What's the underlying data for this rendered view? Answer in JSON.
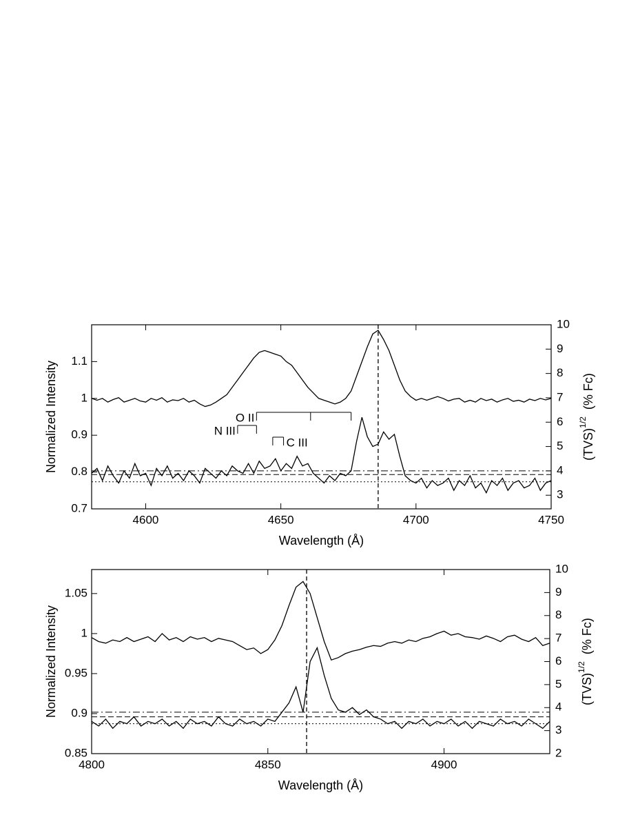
{
  "chart_data": [
    {
      "type": "line",
      "x_label": "Wavelength (Å)",
      "y_label": "Normalized Intensity",
      "y2_label": {
        "base": "(TVS)",
        "sup": "1/2",
        "unit": "(% Fc)"
      },
      "xlim": [
        4580,
        4750
      ],
      "xticks": [
        4600,
        4650,
        4700,
        4750
      ],
      "ylim": [
        0.7,
        1.2
      ],
      "yticks": [
        0.7,
        0.8,
        0.9,
        1,
        1.1
      ],
      "y2lim": [
        2.44,
        10
      ],
      "y2ticks": [
        3,
        4,
        5,
        6,
        7,
        8,
        9,
        10
      ],
      "x": [
        4580,
        4582,
        4584,
        4586,
        4588,
        4590,
        4592,
        4594,
        4596,
        4598,
        4600,
        4602,
        4604,
        4606,
        4608,
        4610,
        4612,
        4614,
        4616,
        4618,
        4620,
        4622,
        4624,
        4626,
        4628,
        4630,
        4632,
        4634,
        4636,
        4638,
        4640,
        4642,
        4644,
        4646,
        4648,
        4650,
        4652,
        4654,
        4656,
        4658,
        4660,
        4662,
        4664,
        4666,
        4668,
        4670,
        4672,
        4674,
        4676,
        4678,
        4680,
        4682,
        4684,
        4686,
        4688,
        4690,
        4692,
        4694,
        4696,
        4698,
        4700,
        4702,
        4704,
        4706,
        4708,
        4710,
        4712,
        4714,
        4716,
        4718,
        4720,
        4722,
        4724,
        4726,
        4728,
        4730,
        4732,
        4734,
        4736,
        4738,
        4740,
        4742,
        4744,
        4746,
        4748,
        4750
      ],
      "series": [
        {
          "color": "#000000",
          "axis": "y",
          "values": [
            1.0,
            0.995,
            1.0,
            0.99,
            0.997,
            1.002,
            0.99,
            0.995,
            1.0,
            0.993,
            0.99,
            1.0,
            0.995,
            1.002,
            0.99,
            0.996,
            0.994,
            1.0,
            0.99,
            0.995,
            0.985,
            0.978,
            0.982,
            0.99,
            1.0,
            1.01,
            1.03,
            1.05,
            1.07,
            1.09,
            1.11,
            1.125,
            1.13,
            1.125,
            1.12,
            1.115,
            1.1,
            1.09,
            1.07,
            1.05,
            1.03,
            1.015,
            1.0,
            0.995,
            0.99,
            0.985,
            0.99,
            1.0,
            1.02,
            1.06,
            1.1,
            1.14,
            1.175,
            1.185,
            1.16,
            1.13,
            1.09,
            1.05,
            1.02,
            1.005,
            0.995,
            1.0,
            0.995,
            1.0,
            1.005,
            1.0,
            0.993,
            0.998,
            1.0,
            0.99,
            0.995,
            0.99,
            1.0,
            0.994,
            0.998,
            0.99,
            0.996,
            1.0,
            0.992,
            0.995,
            0.99,
            0.998,
            0.994,
            1.0,
            0.996,
            1.0
          ]
        },
        {
          "color": "#000000",
          "axis": "y2",
          "values": [
            3.9,
            4.1,
            3.6,
            4.2,
            3.8,
            3.5,
            4.0,
            3.7,
            4.3,
            3.8,
            3.9,
            3.4,
            4.1,
            3.8,
            4.2,
            3.7,
            3.9,
            3.6,
            4.0,
            3.8,
            3.5,
            4.1,
            3.9,
            3.7,
            4.0,
            3.8,
            4.2,
            4.0,
            3.9,
            4.3,
            3.9,
            4.4,
            4.1,
            4.2,
            4.5,
            4.0,
            4.3,
            4.1,
            4.6,
            4.2,
            4.3,
            3.9,
            3.7,
            3.5,
            3.8,
            3.6,
            3.9,
            3.8,
            4.0,
            5.2,
            6.2,
            5.4,
            5.0,
            5.1,
            5.6,
            5.3,
            5.5,
            4.6,
            3.8,
            3.6,
            3.5,
            3.7,
            3.3,
            3.6,
            3.4,
            3.5,
            3.7,
            3.2,
            3.6,
            3.4,
            3.8,
            3.3,
            3.5,
            3.1,
            3.6,
            3.4,
            3.7,
            3.2,
            3.5,
            3.6,
            3.3,
            3.4,
            3.7,
            3.2,
            3.5,
            3.6
          ]
        }
      ],
      "hlines": [
        {
          "value": 4.0,
          "axis": "y2",
          "style": "dashdot"
        },
        {
          "value": 3.85,
          "axis": "y2",
          "style": "dashed"
        },
        {
          "value": 3.55,
          "axis": "y2",
          "style": "dotted"
        }
      ],
      "vline": 4686,
      "annotations": [
        {
          "label": "O II",
          "lines": [
            4641,
            4661,
            4676
          ]
        },
        {
          "label": "N III",
          "lines": [
            4634,
            4641
          ]
        },
        {
          "label": "C III",
          "lines": [
            4647,
            4651
          ]
        }
      ]
    },
    {
      "type": "line",
      "x_label": "Wavelength (Å)",
      "y_label": "Normalized Intensity",
      "y2_label": {
        "base": "(TVS)",
        "sup": "1/2",
        "unit": "(% Fc)"
      },
      "xlim": [
        4800,
        4930
      ],
      "xticks": [
        4800,
        4850,
        4900
      ],
      "ylim": [
        0.85,
        1.08
      ],
      "yticks": [
        0.85,
        0.9,
        0.95,
        1,
        1.05
      ],
      "y2lim": [
        2,
        10
      ],
      "y2ticks": [
        2,
        3,
        4,
        5,
        6,
        7,
        8,
        9,
        10
      ],
      "x": [
        4800,
        4802,
        4804,
        4806,
        4808,
        4810,
        4812,
        4814,
        4816,
        4818,
        4820,
        4822,
        4824,
        4826,
        4828,
        4830,
        4832,
        4834,
        4836,
        4838,
        4840,
        4842,
        4844,
        4846,
        4848,
        4850,
        4852,
        4854,
        4856,
        4858,
        4860,
        4862,
        4864,
        4866,
        4868,
        4870,
        4872,
        4874,
        4876,
        4878,
        4880,
        4882,
        4884,
        4886,
        4888,
        4890,
        4892,
        4894,
        4896,
        4898,
        4900,
        4902,
        4904,
        4906,
        4908,
        4910,
        4912,
        4914,
        4916,
        4918,
        4920,
        4922,
        4924,
        4926,
        4928,
        4930
      ],
      "series": [
        {
          "color": "#000000",
          "axis": "y",
          "values": [
            0.995,
            0.99,
            0.988,
            0.992,
            0.99,
            0.995,
            0.99,
            0.993,
            0.996,
            0.99,
            1.0,
            0.992,
            0.995,
            0.99,
            0.996,
            0.993,
            0.995,
            0.99,
            0.994,
            0.992,
            0.99,
            0.985,
            0.98,
            0.982,
            0.975,
            0.98,
            0.992,
            1.01,
            1.035,
            1.058,
            1.065,
            1.05,
            1.02,
            0.99,
            0.967,
            0.97,
            0.975,
            0.978,
            0.98,
            0.983,
            0.985,
            0.984,
            0.988,
            0.99,
            0.988,
            0.992,
            0.99,
            0.994,
            0.996,
            1.0,
            1.003,
            0.998,
            1.0,
            0.996,
            0.995,
            0.993,
            0.997,
            0.994,
            0.99,
            0.996,
            0.998,
            0.993,
            0.99,
            0.995,
            0.985,
            0.988
          ]
        },
        {
          "color": "#000000",
          "axis": "y2",
          "values": [
            3.4,
            3.2,
            3.5,
            3.1,
            3.4,
            3.3,
            3.6,
            3.2,
            3.4,
            3.3,
            3.5,
            3.2,
            3.4,
            3.1,
            3.5,
            3.3,
            3.4,
            3.2,
            3.6,
            3.3,
            3.2,
            3.5,
            3.3,
            3.4,
            3.2,
            3.5,
            3.4,
            3.8,
            4.2,
            4.9,
            3.8,
            6.0,
            6.6,
            5.4,
            4.4,
            3.9,
            3.8,
            4.0,
            3.7,
            3.9,
            3.6,
            3.5,
            3.3,
            3.4,
            3.1,
            3.4,
            3.3,
            3.5,
            3.2,
            3.4,
            3.3,
            3.5,
            3.2,
            3.4,
            3.1,
            3.4,
            3.3,
            3.2,
            3.5,
            3.3,
            3.4,
            3.2,
            3.5,
            3.3,
            3.1,
            3.4
          ]
        }
      ],
      "hlines": [
        {
          "value": 3.8,
          "axis": "y2",
          "style": "dashdot"
        },
        {
          "value": 3.6,
          "axis": "y2",
          "style": "dashed"
        },
        {
          "value": 3.3,
          "axis": "y2",
          "style": "dotted"
        }
      ],
      "vline": 4861
    }
  ]
}
